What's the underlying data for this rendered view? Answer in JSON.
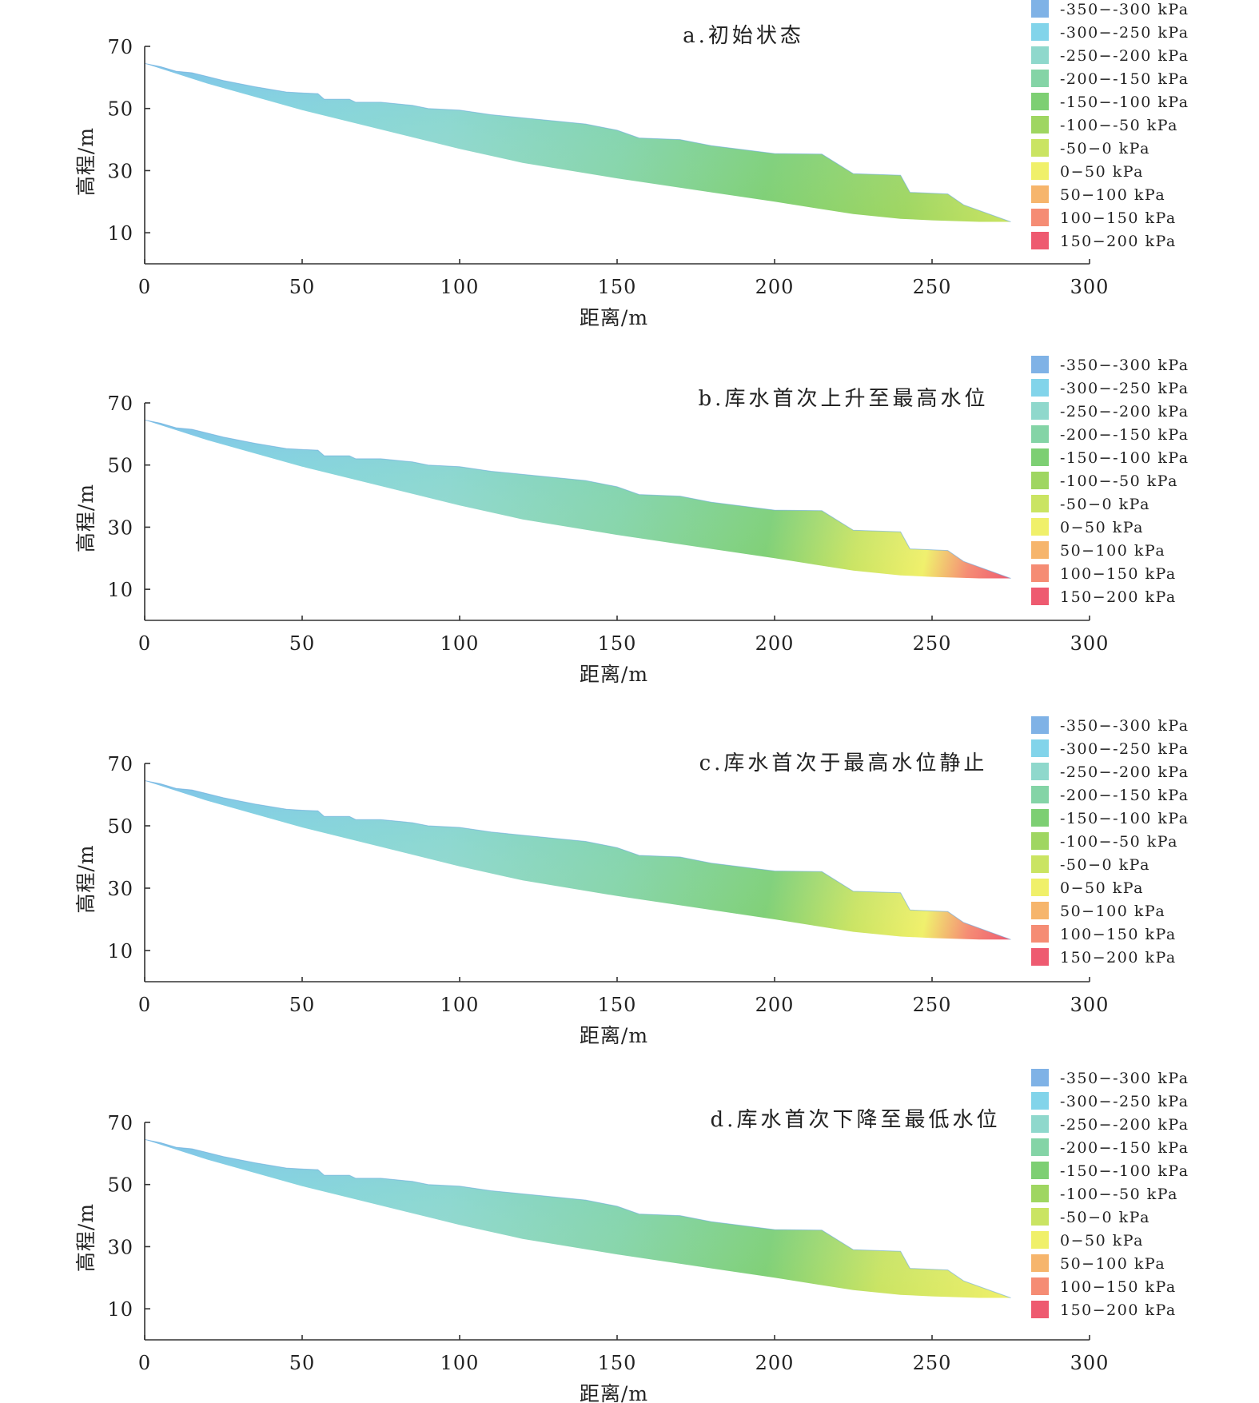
{
  "chart_data": [
    {
      "type": "area",
      "title": "a.初始状态",
      "xlabel": "距离/m",
      "ylabel": "高程/m",
      "xlim": [
        0,
        300
      ],
      "ylim": [
        0,
        70
      ],
      "x_ticks": [
        0,
        50,
        100,
        150,
        200,
        250,
        300
      ],
      "y_ticks": [
        10,
        30,
        50,
        70
      ],
      "surface_profile": [
        [
          0,
          64.5
        ],
        [
          5,
          63.5
        ],
        [
          10,
          62
        ],
        [
          15,
          61.5
        ],
        [
          25,
          59
        ],
        [
          35,
          57
        ],
        [
          45,
          55.3
        ],
        [
          50,
          55
        ],
        [
          55,
          54.8
        ],
        [
          57,
          53
        ],
        [
          65,
          53
        ],
        [
          67,
          52
        ],
        [
          75,
          52
        ],
        [
          85,
          51
        ],
        [
          90,
          50
        ],
        [
          100,
          49.5
        ],
        [
          110,
          48
        ],
        [
          120,
          47
        ],
        [
          130,
          46
        ],
        [
          140,
          45
        ],
        [
          150,
          43
        ],
        [
          157,
          40.5
        ],
        [
          170,
          40
        ],
        [
          180,
          38
        ],
        [
          200,
          35.5
        ],
        [
          215,
          35.3
        ],
        [
          225,
          29
        ],
        [
          240,
          28.5
        ],
        [
          243,
          23
        ],
        [
          255,
          22.5
        ],
        [
          260,
          19
        ],
        [
          275,
          13.5
        ]
      ],
      "base_profile": [
        [
          0,
          64.5
        ],
        [
          20,
          58
        ],
        [
          50,
          49.5
        ],
        [
          100,
          37
        ],
        [
          120,
          32.5
        ],
        [
          150,
          27.5
        ],
        [
          200,
          20
        ],
        [
          225,
          16
        ],
        [
          240,
          14.5
        ],
        [
          250,
          14
        ],
        [
          265,
          13.5
        ],
        [
          275,
          13.5
        ]
      ],
      "pressure_band_index_at_surface": [
        0,
        0,
        0,
        0,
        1,
        1,
        1,
        1,
        1,
        1,
        1,
        1,
        2,
        3,
        4,
        4,
        4,
        5,
        5,
        5,
        5,
        6,
        6,
        6
      ],
      "max_pressure_band_index": 6
    },
    {
      "type": "area",
      "title": "b.库水首次上升至最高水位",
      "xlabel": "距离/m",
      "ylabel": "高程/m",
      "xlim": [
        0,
        300
      ],
      "ylim": [
        0,
        70
      ],
      "x_ticks": [
        0,
        50,
        100,
        150,
        200,
        250,
        300
      ],
      "y_ticks": [
        10,
        30,
        50,
        70
      ],
      "surface_profile": [
        [
          0,
          64.5
        ],
        [
          5,
          63.5
        ],
        [
          10,
          62
        ],
        [
          15,
          61.5
        ],
        [
          25,
          59
        ],
        [
          35,
          57
        ],
        [
          45,
          55.3
        ],
        [
          50,
          55
        ],
        [
          55,
          54.8
        ],
        [
          57,
          53
        ],
        [
          65,
          53
        ],
        [
          67,
          52
        ],
        [
          75,
          52
        ],
        [
          85,
          51
        ],
        [
          90,
          50
        ],
        [
          100,
          49.5
        ],
        [
          110,
          48
        ],
        [
          120,
          47
        ],
        [
          130,
          46
        ],
        [
          140,
          45
        ],
        [
          150,
          43
        ],
        [
          157,
          40.5
        ],
        [
          170,
          40
        ],
        [
          180,
          38
        ],
        [
          200,
          35.5
        ],
        [
          215,
          35.3
        ],
        [
          225,
          29
        ],
        [
          240,
          28.5
        ],
        [
          243,
          23
        ],
        [
          255,
          22.5
        ],
        [
          260,
          19
        ],
        [
          275,
          13.5
        ]
      ],
      "base_profile": [
        [
          0,
          64.5
        ],
        [
          20,
          58
        ],
        [
          50,
          49.5
        ],
        [
          100,
          37
        ],
        [
          120,
          32.5
        ],
        [
          150,
          27.5
        ],
        [
          200,
          20
        ],
        [
          225,
          16
        ],
        [
          240,
          14.5
        ],
        [
          250,
          14
        ],
        [
          265,
          13.5
        ],
        [
          275,
          13.5
        ]
      ],
      "max_pressure_band_index": 10
    },
    {
      "type": "area",
      "title": "c.库水首次于最高水位静止",
      "xlabel": "距离/m",
      "ylabel": "高程/m",
      "xlim": [
        0,
        300
      ],
      "ylim": [
        0,
        70
      ],
      "x_ticks": [
        0,
        50,
        100,
        150,
        200,
        250,
        300
      ],
      "y_ticks": [
        10,
        30,
        50,
        70
      ],
      "surface_profile": [
        [
          0,
          64.5
        ],
        [
          5,
          63.5
        ],
        [
          10,
          62
        ],
        [
          15,
          61.5
        ],
        [
          25,
          59
        ],
        [
          35,
          57
        ],
        [
          45,
          55.3
        ],
        [
          50,
          55
        ],
        [
          55,
          54.8
        ],
        [
          57,
          53
        ],
        [
          65,
          53
        ],
        [
          67,
          52
        ],
        [
          75,
          52
        ],
        [
          85,
          51
        ],
        [
          90,
          50
        ],
        [
          100,
          49.5
        ],
        [
          110,
          48
        ],
        [
          120,
          47
        ],
        [
          130,
          46
        ],
        [
          140,
          45
        ],
        [
          150,
          43
        ],
        [
          157,
          40.5
        ],
        [
          170,
          40
        ],
        [
          180,
          38
        ],
        [
          200,
          35.5
        ],
        [
          215,
          35.3
        ],
        [
          225,
          29
        ],
        [
          240,
          28.5
        ],
        [
          243,
          23
        ],
        [
          255,
          22.5
        ],
        [
          260,
          19
        ],
        [
          275,
          13.5
        ]
      ],
      "base_profile": [
        [
          0,
          64.5
        ],
        [
          20,
          58
        ],
        [
          50,
          49.5
        ],
        [
          100,
          37
        ],
        [
          120,
          32.5
        ],
        [
          150,
          27.5
        ],
        [
          200,
          20
        ],
        [
          225,
          16
        ],
        [
          240,
          14.5
        ],
        [
          250,
          14
        ],
        [
          265,
          13.5
        ],
        [
          275,
          13.5
        ]
      ],
      "max_pressure_band_index": 10
    },
    {
      "type": "area",
      "title": "d.库水首次下降至最低水位",
      "xlabel": "距离/m",
      "ylabel": "高程/m",
      "xlim": [
        0,
        300
      ],
      "ylim": [
        0,
        70
      ],
      "x_ticks": [
        0,
        50,
        100,
        150,
        200,
        250,
        300
      ],
      "y_ticks": [
        10,
        30,
        50,
        70
      ],
      "surface_profile": [
        [
          0,
          64.5
        ],
        [
          5,
          63.5
        ],
        [
          10,
          62
        ],
        [
          15,
          61.5
        ],
        [
          25,
          59
        ],
        [
          35,
          57
        ],
        [
          45,
          55.3
        ],
        [
          50,
          55
        ],
        [
          55,
          54.8
        ],
        [
          57,
          53
        ],
        [
          65,
          53
        ],
        [
          67,
          52
        ],
        [
          75,
          52
        ],
        [
          85,
          51
        ],
        [
          90,
          50
        ],
        [
          100,
          49.5
        ],
        [
          110,
          48
        ],
        [
          120,
          47
        ],
        [
          130,
          46
        ],
        [
          140,
          45
        ],
        [
          150,
          43
        ],
        [
          157,
          40.5
        ],
        [
          170,
          40
        ],
        [
          180,
          38
        ],
        [
          200,
          35.5
        ],
        [
          215,
          35.3
        ],
        [
          225,
          29
        ],
        [
          240,
          28.5
        ],
        [
          243,
          23
        ],
        [
          255,
          22.5
        ],
        [
          260,
          19
        ],
        [
          275,
          13.5
        ]
      ],
      "base_profile": [
        [
          0,
          64.5
        ],
        [
          20,
          58
        ],
        [
          50,
          49.5
        ],
        [
          100,
          37
        ],
        [
          120,
          32.5
        ],
        [
          150,
          27.5
        ],
        [
          200,
          20
        ],
        [
          225,
          16
        ],
        [
          240,
          14.5
        ],
        [
          250,
          14
        ],
        [
          265,
          13.5
        ],
        [
          275,
          13.5
        ]
      ],
      "max_pressure_band_index": 7
    }
  ],
  "legend": [
    {
      "label": "-350−-300 kPa",
      "color": "#7fb2e6"
    },
    {
      "label": "-300−-250 kPa",
      "color": "#82d4ea"
    },
    {
      "label": "-250−-200 kPa",
      "color": "#8fd8cc"
    },
    {
      "label": "-200−-150 kPa",
      "color": "#84d4a6"
    },
    {
      "label": "-150−-100 kPa",
      "color": "#7dcf73"
    },
    {
      "label": "-100−-50 kPa",
      "color": "#9fd661"
    },
    {
      "label": "-50−0 kPa",
      "color": "#cae462"
    },
    {
      "label": "0−50 kPa",
      "color": "#f0f06a"
    },
    {
      "label": "50−100 kPa",
      "color": "#f6b56c"
    },
    {
      "label": "100−150 kPa",
      "color": "#f58c74"
    },
    {
      "label": "150−200 kPa",
      "color": "#ee5a70"
    }
  ]
}
